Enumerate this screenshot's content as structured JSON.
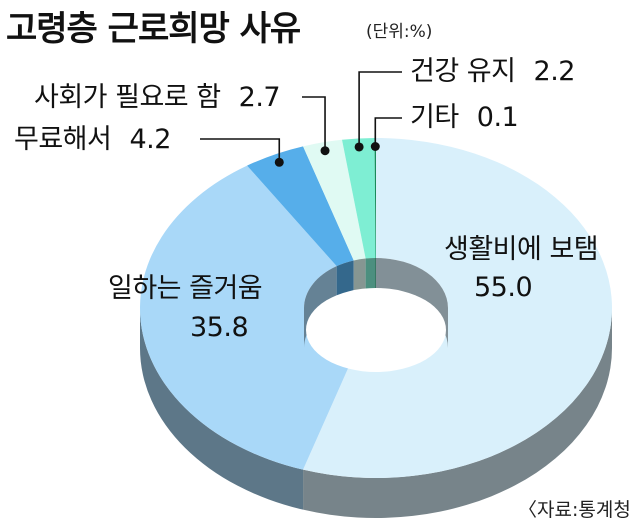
{
  "chart_data": {
    "type": "pie",
    "title": "고령층 근로희망 사유",
    "unit_note": "(단위:%)",
    "source": "〈자료:통계청",
    "slices": [
      {
        "name": "생활비에 보탬",
        "value": 55.0,
        "value_label": "55.0",
        "color": "#d9f0fb"
      },
      {
        "name": "일하는 즐거움",
        "value": 35.8,
        "value_label": "35.8",
        "color": "#a9d8f8"
      },
      {
        "name": "무료해서",
        "value": 4.2,
        "value_label": "4.2",
        "color": "#56aeea"
      },
      {
        "name": "사회가 필요로 함",
        "value": 2.7,
        "value_label": "2.7",
        "color": "#e0faf3"
      },
      {
        "name": "건강 유지",
        "value": 2.2,
        "value_label": "2.2",
        "color": "#7eeed3"
      },
      {
        "name": "기타",
        "value": 0.1,
        "value_label": "0.1",
        "color": "#1a8a5a"
      }
    ]
  }
}
